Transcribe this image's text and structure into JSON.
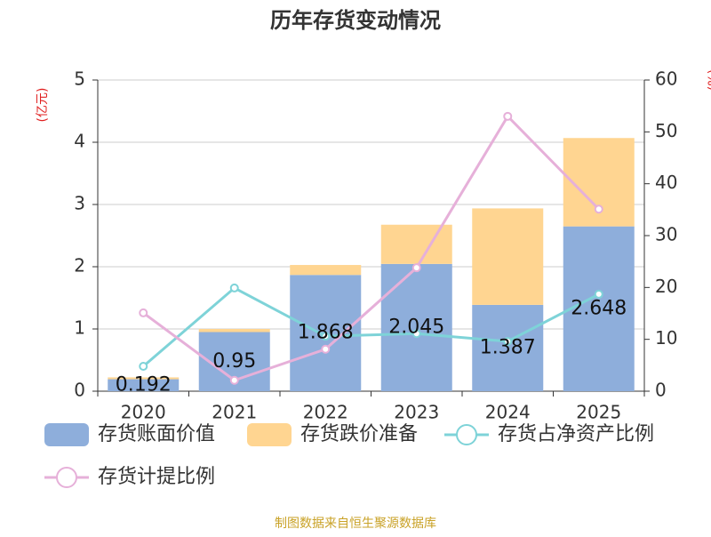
{
  "chart_data": {
    "type": "bar-line",
    "title": "历年存货变动情况",
    "ylabel": "(亿元)",
    "y2label": "(%)",
    "source": "制图数据来自恒生聚源数据库",
    "categories": [
      "2020",
      "2021",
      "2022",
      "2023",
      "2024",
      "2025"
    ],
    "ylim": [
      0,
      5
    ],
    "yticks": [
      0,
      1,
      2,
      3,
      4,
      5
    ],
    "y2lim": [
      0,
      60
    ],
    "y2ticks": [
      0,
      10,
      20,
      30,
      40,
      50,
      60
    ],
    "grid": true,
    "series": [
      {
        "name": "存货账面价值",
        "kind": "bar",
        "color": "#8eaedb",
        "values": [
          0.192,
          0.95,
          1.868,
          2.045,
          1.387,
          2.648
        ]
      },
      {
        "name": "存货跌价准备",
        "kind": "bar",
        "color": "#ffd591",
        "values": [
          0.03,
          0.05,
          0.16,
          0.63,
          1.55,
          1.42
        ]
      },
      {
        "name": "存货占净资产比例",
        "kind": "line",
        "axis": "y2",
        "color": "#7ed3d8",
        "values": [
          4.8,
          19.9,
          10.6,
          11.1,
          9.6,
          18.7
        ]
      },
      {
        "name": "存货计提比例",
        "kind": "line",
        "axis": "y2",
        "color": "#e6b0d9",
        "values": [
          15.1,
          2.1,
          8.1,
          23.8,
          53.0,
          35.1
        ]
      }
    ]
  }
}
